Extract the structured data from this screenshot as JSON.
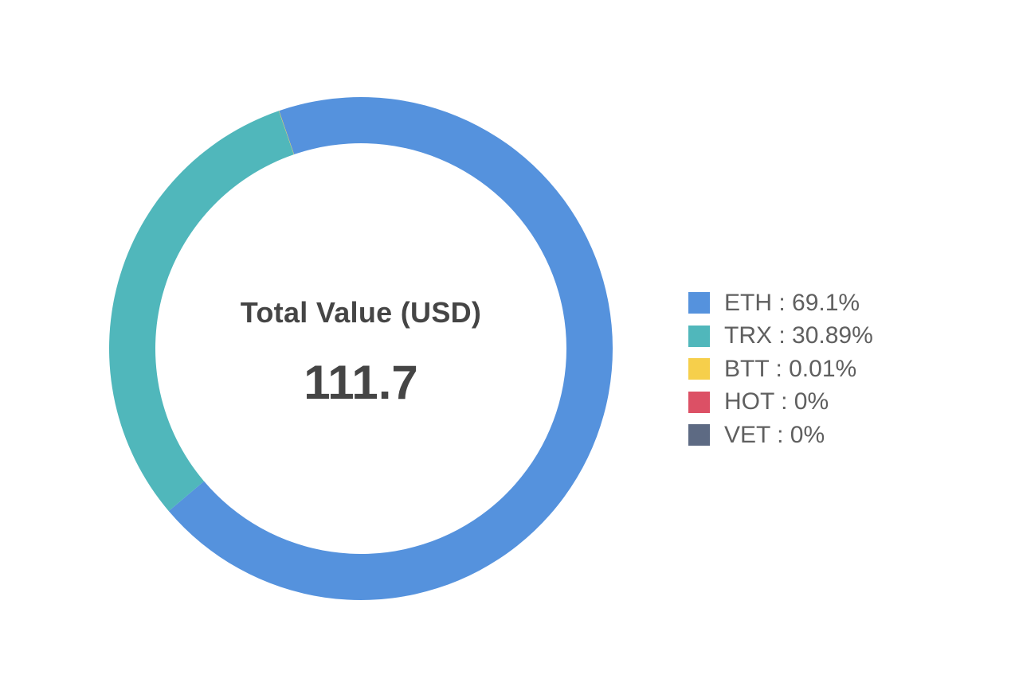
{
  "chart_data": {
    "type": "pie",
    "donut": true,
    "center": {
      "title": "Total Value (USD)",
      "value": "111.7"
    },
    "legend_position": "right",
    "start_angle_deg": -19,
    "series": [
      {
        "name": "ETH",
        "value": 69.1,
        "label": "ETH : 69.1%",
        "color": "#5592dd"
      },
      {
        "name": "TRX",
        "value": 30.89,
        "label": "TRX : 30.89%",
        "color": "#50b7bb"
      },
      {
        "name": "BTT",
        "value": 0.01,
        "label": "BTT : 0.01%",
        "color": "#f6cf4b"
      },
      {
        "name": "HOT",
        "value": 0,
        "label": "HOT : 0%",
        "color": "#dc5065"
      },
      {
        "name": "VET",
        "value": 0,
        "label": "VET : 0%",
        "color": "#5d6a83"
      }
    ]
  }
}
